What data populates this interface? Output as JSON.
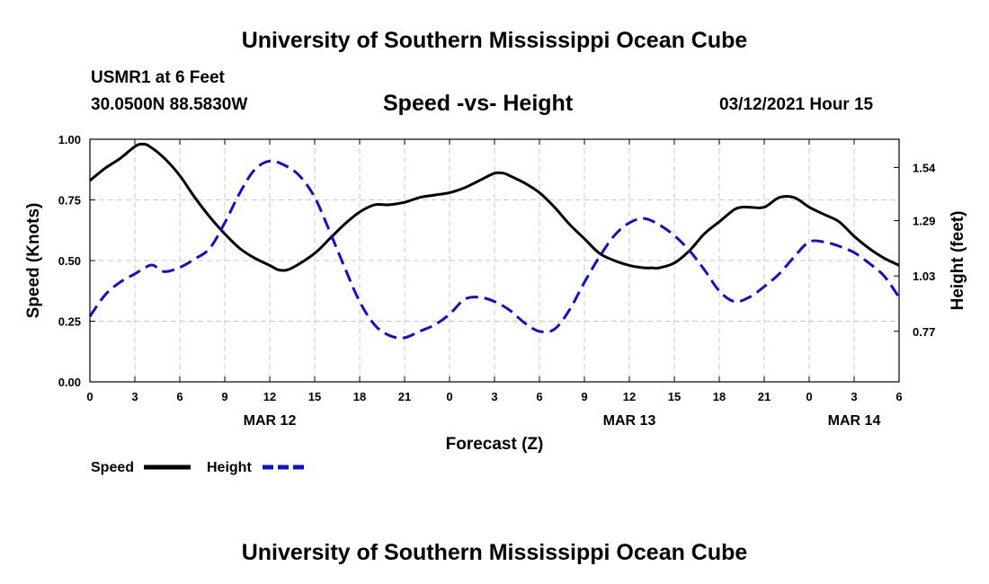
{
  "header": {
    "title_top": "University of Southern Mississippi Ocean Cube",
    "title_bottom": "University of Southern Mississippi Ocean Cube",
    "station": "USMR1 at 6 Feet",
    "coords": "30.0500N 88.5830W",
    "datetime": "03/12/2021 Hour 15"
  },
  "chart_data": {
    "type": "line",
    "title": "Speed -vs- Height",
    "xlabel": "Forecast (Z)",
    "ylabel": "Speed (Knots)",
    "y2label": "Height (feet)",
    "ylim": [
      0,
      1.0
    ],
    "y2lim": [
      0.5325,
      1.6725
    ],
    "xlim": [
      0,
      54
    ],
    "y_ticks": [
      0.0,
      0.25,
      0.5,
      0.75,
      1.0
    ],
    "y_tick_labels": [
      "0.00",
      "0.25",
      "0.50",
      "0.75",
      "1.00"
    ],
    "y2_ticks": [
      0.77,
      1.03,
      1.29,
      1.54
    ],
    "y2_tick_labels": [
      "0.77",
      "1.03",
      "1.29",
      "1.54"
    ],
    "x_ticks": [
      0,
      3,
      6,
      9,
      12,
      15,
      18,
      21,
      24,
      27,
      30,
      33,
      36,
      39,
      42,
      45,
      48,
      51,
      54
    ],
    "x_tick_labels": [
      "0",
      "3",
      "6",
      "9",
      "12",
      "15",
      "18",
      "21",
      "0",
      "3",
      "6",
      "9",
      "12",
      "15",
      "18",
      "21",
      "0",
      "3",
      "6"
    ],
    "date_labels": [
      {
        "x": 12,
        "label": "MAR 12"
      },
      {
        "x": 36,
        "label": "MAR 13"
      },
      {
        "x": 51,
        "label": "MAR 14"
      }
    ],
    "grid": true,
    "legend_position": "bottom-left",
    "series": [
      {
        "name": "Speed",
        "axis": "left",
        "color": "#000000",
        "style": "solid",
        "x": [
          0,
          1,
          2,
          3,
          3.5,
          4,
          5,
          6,
          7,
          8,
          9,
          10,
          11,
          12,
          12.7,
          13.5,
          15,
          16,
          17,
          18,
          19,
          20,
          21,
          22,
          23,
          24,
          25,
          26,
          27,
          27.6,
          28,
          29,
          30,
          31,
          32,
          33,
          34,
          35,
          36,
          37,
          37.5,
          38,
          39,
          40,
          41,
          42,
          43,
          43.5,
          44,
          45,
          46,
          47,
          48,
          49,
          50,
          51,
          52,
          53,
          54
        ],
        "values": [
          0.83,
          0.88,
          0.92,
          0.97,
          0.98,
          0.97,
          0.92,
          0.85,
          0.76,
          0.68,
          0.61,
          0.55,
          0.51,
          0.48,
          0.46,
          0.47,
          0.53,
          0.59,
          0.65,
          0.7,
          0.73,
          0.73,
          0.74,
          0.76,
          0.77,
          0.78,
          0.8,
          0.83,
          0.86,
          0.86,
          0.85,
          0.82,
          0.78,
          0.72,
          0.65,
          0.59,
          0.53,
          0.5,
          0.48,
          0.47,
          0.47,
          0.47,
          0.49,
          0.54,
          0.61,
          0.66,
          0.71,
          0.72,
          0.72,
          0.72,
          0.76,
          0.76,
          0.72,
          0.69,
          0.66,
          0.6,
          0.55,
          0.51,
          0.48
        ]
      },
      {
        "name": "Height",
        "axis": "right",
        "color": "#1010cc",
        "style": "dashed",
        "x": [
          0,
          1,
          2,
          3,
          4,
          4.5,
          5,
          6,
          7,
          8,
          9,
          10,
          11,
          12,
          13,
          14,
          15,
          16,
          17,
          18,
          19,
          20,
          21,
          22,
          23,
          24,
          25,
          26,
          27,
          28,
          29,
          30,
          31,
          32,
          33,
          34,
          35,
          36,
          37,
          38,
          39,
          40,
          41,
          42,
          43,
          44,
          45,
          46,
          47,
          48,
          49,
          50,
          51,
          52,
          53,
          54
        ],
        "values": [
          0.84,
          0.94,
          1.0,
          1.04,
          1.08,
          1.07,
          1.05,
          1.07,
          1.11,
          1.16,
          1.28,
          1.42,
          1.53,
          1.57,
          1.55,
          1.5,
          1.4,
          1.24,
          1.07,
          0.91,
          0.8,
          0.75,
          0.74,
          0.77,
          0.8,
          0.85,
          0.92,
          0.93,
          0.91,
          0.87,
          0.81,
          0.77,
          0.78,
          0.87,
          1.0,
          1.12,
          1.22,
          1.28,
          1.3,
          1.27,
          1.22,
          1.15,
          1.06,
          0.96,
          0.91,
          0.93,
          0.98,
          1.04,
          1.12,
          1.19,
          1.19,
          1.17,
          1.14,
          1.09,
          1.03,
          0.93
        ]
      }
    ]
  }
}
